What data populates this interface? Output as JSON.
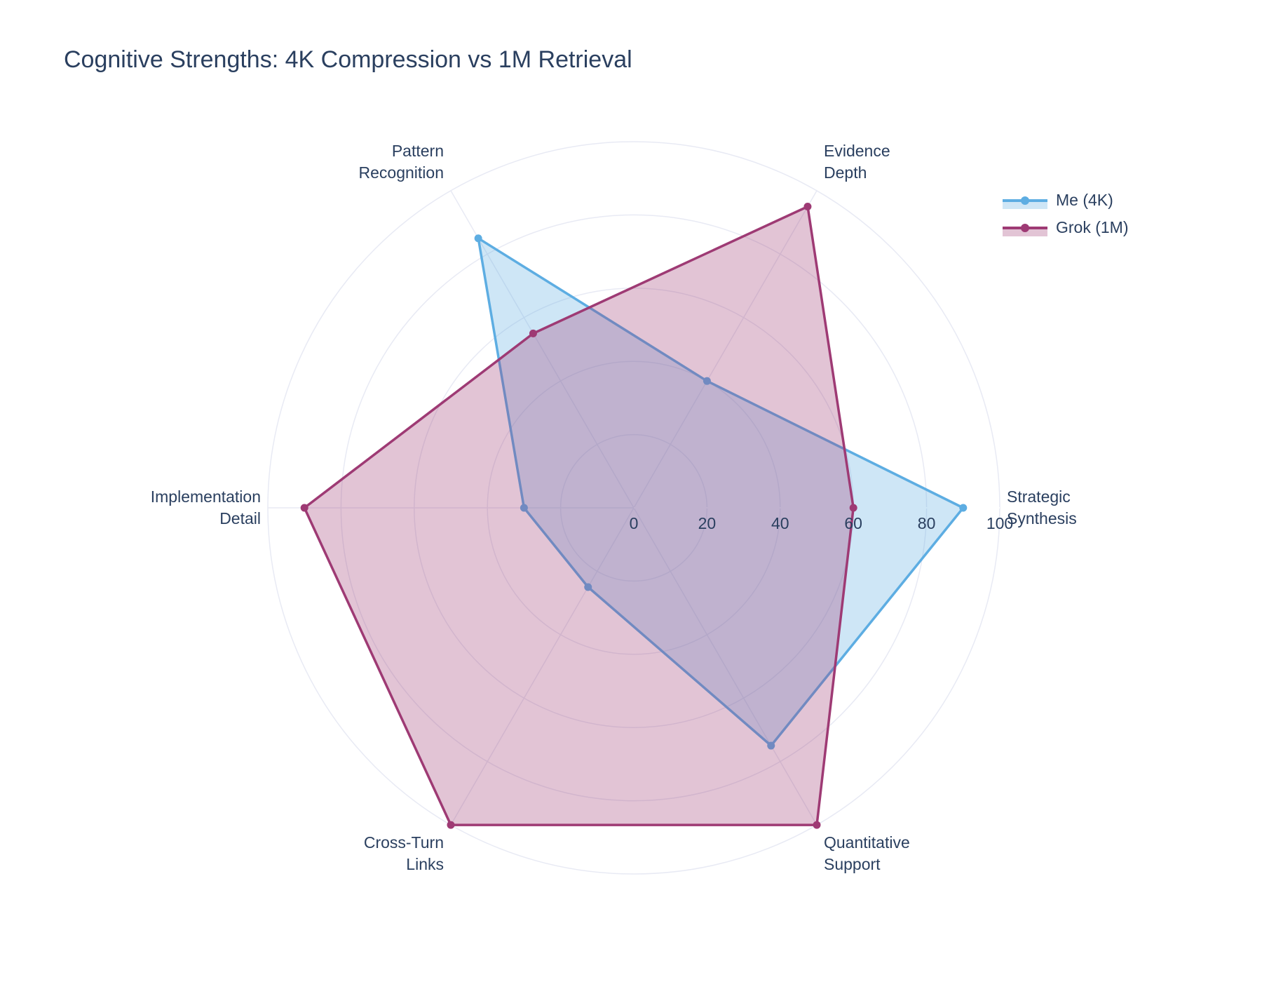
{
  "chart_data": {
    "type": "radar",
    "title": "Cognitive Strengths: 4K Compression vs 1M Retrieval",
    "categories": [
      [
        "Strategic",
        "Synthesis"
      ],
      [
        "Evidence",
        "Depth"
      ],
      [
        "Pattern",
        "Recognition"
      ],
      [
        "Implementation",
        "Detail"
      ],
      [
        "Cross-Turn",
        "Links"
      ],
      [
        "Quantitative",
        "Support"
      ]
    ],
    "radial_range": [
      0,
      100
    ],
    "radial_ticks": [
      "0",
      "20",
      "40",
      "60",
      "80",
      "100"
    ],
    "legend_position": "top-right",
    "series": [
      {
        "name": "Me (4K)",
        "values": [
          90,
          40,
          85,
          30,
          25,
          75
        ],
        "line_color": "#5DADE2",
        "fill_color": "rgba(93,173,226,0.3)"
      },
      {
        "name": "Grok (1M)",
        "values": [
          60,
          95,
          55,
          90,
          100,
          100
        ],
        "line_color": "#9E3A74",
        "fill_color": "rgba(158,58,116,0.3)"
      }
    ],
    "colors": {
      "grid": "#e8eaf4",
      "text": "#2a3f5f"
    }
  }
}
